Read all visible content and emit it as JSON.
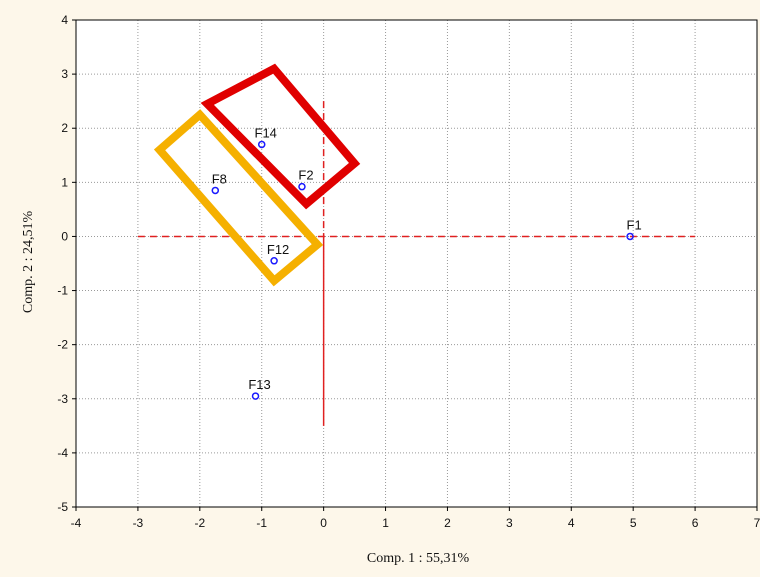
{
  "chart_data": {
    "type": "scatter",
    "title": "",
    "xlabel": "Comp. 1 : 55,31%",
    "ylabel": "Comp. 2 : 24,51%",
    "xlim": [
      -4,
      7
    ],
    "ylim": [
      -5,
      4
    ],
    "xticks": [
      -4,
      -3,
      -2,
      -1,
      0,
      1,
      2,
      3,
      4,
      5,
      6,
      7
    ],
    "yticks": [
      -5,
      -4,
      -3,
      -2,
      -1,
      0,
      1,
      2,
      3,
      4
    ],
    "grid": true,
    "points": [
      {
        "label": "F14",
        "x": -1.0,
        "y": 1.7
      },
      {
        "label": "F2",
        "x": -0.35,
        "y": 0.92
      },
      {
        "label": "F8",
        "x": -1.75,
        "y": 0.85
      },
      {
        "label": "F12",
        "x": -0.8,
        "y": -0.45
      },
      {
        "label": "F1",
        "x": 4.95,
        "y": 0.0
      },
      {
        "label": "F13",
        "x": -1.1,
        "y": -2.95
      }
    ],
    "reference_lines": [
      {
        "orientation": "horizontal",
        "value": 0,
        "from": -3,
        "to": 6,
        "color": "#e02020",
        "style": "dashed"
      },
      {
        "orientation": "vertical",
        "value": 0,
        "from": -3.5,
        "to": 2.5,
        "color": "#e02020",
        "style": "dashed-solid"
      }
    ],
    "highlight_boxes": [
      {
        "color": "#e00000",
        "corners": [
          [
            -0.8,
            3.1
          ],
          [
            0.5,
            1.35
          ],
          [
            -0.28,
            0.6
          ],
          [
            -1.88,
            2.45
          ]
        ]
      },
      {
        "color": "#f5b000",
        "corners": [
          [
            -2.0,
            2.25
          ],
          [
            -0.1,
            -0.15
          ],
          [
            -0.8,
            -0.82
          ],
          [
            -2.65,
            1.6
          ]
        ]
      }
    ],
    "colors": {
      "background": "#fdf7ea",
      "plot_background": "#ffffff",
      "point": "#1a1aff",
      "grid": "#9a9a9a",
      "reference": "#e02020"
    }
  }
}
